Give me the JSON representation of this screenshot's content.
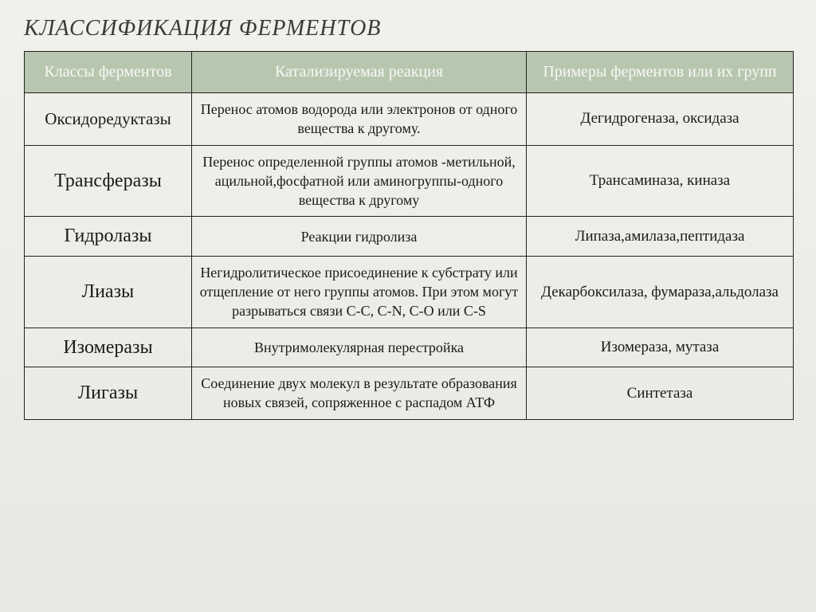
{
  "title": "КЛАССИФИКАЦИЯ ФЕРМЕНТОВ",
  "columns": [
    "Классы ферментов",
    "Катализируемая реакция",
    "Примеры ферментов или их групп"
  ],
  "rows": [
    {
      "class_name": "Оксидоредуктазы",
      "reaction": "Перенос атомов водорода или электронов от одного вещества к другому.",
      "examples": "Дегидрогеназа, оксидаза",
      "class_size": "class-name"
    },
    {
      "class_name": "Трансферазы",
      "reaction": "Перенос определенной группы атомов -метильной, ацильной,фосфатной или аминогруппы-одного вещества к другому",
      "examples": "Трансаминаза, киназа",
      "class_size": "class-name-big"
    },
    {
      "class_name": "Гидролазы",
      "reaction": "Реакции гидролиза",
      "examples": "Липаза,амилаза,пептидаза",
      "class_size": "class-name-big"
    },
    {
      "class_name": "Лиазы",
      "reaction": "Негидролитическое присоединение к субстрату или отщепление от него группы атомов. При этом могут разрываться связи C-C,  C-N,  C-O или C-S",
      "examples": "Декарбоксилаза, фумараза,альдолаза",
      "class_size": "class-name-big"
    },
    {
      "class_name": "Изомеразы",
      "reaction": "Внутримолекулярная перестройка",
      "examples": "Изомераза, мутаза",
      "class_size": "class-name-big"
    },
    {
      "class_name": "Лигазы",
      "reaction": "Соединение двух молекул в результате образования новых связей, сопряженное с распадом АТФ",
      "examples": "Синтетаза",
      "class_size": "class-name-big"
    }
  ]
}
